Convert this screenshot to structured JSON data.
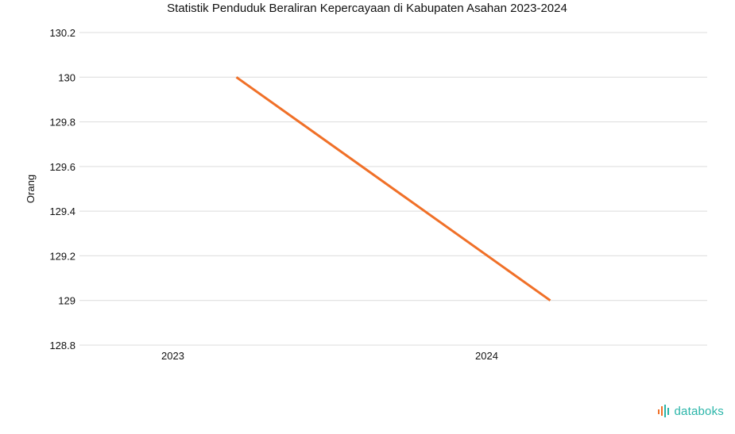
{
  "chart_data": {
    "type": "line",
    "title": "Statistik Penduduk Beraliran Kepercayaan di Kabupaten Asahan 2023-2024",
    "xlabel": "",
    "ylabel": "Orang",
    "categories": [
      "2023",
      "2024"
    ],
    "series": [
      {
        "values": [
          130,
          129
        ],
        "color": "#f07028"
      }
    ],
    "yticks": [
      "128.8",
      "129",
      "129.2",
      "129.4",
      "129.6",
      "129.8",
      "130",
      "130.2"
    ],
    "ylim": [
      128.8,
      130.2
    ],
    "grid": true,
    "legend": "none"
  },
  "branding": {
    "logo_text": "databoks",
    "logo_icon": "databoks-bars-icon",
    "logo_colors": [
      "#f07028",
      "#2bb5a9"
    ]
  }
}
